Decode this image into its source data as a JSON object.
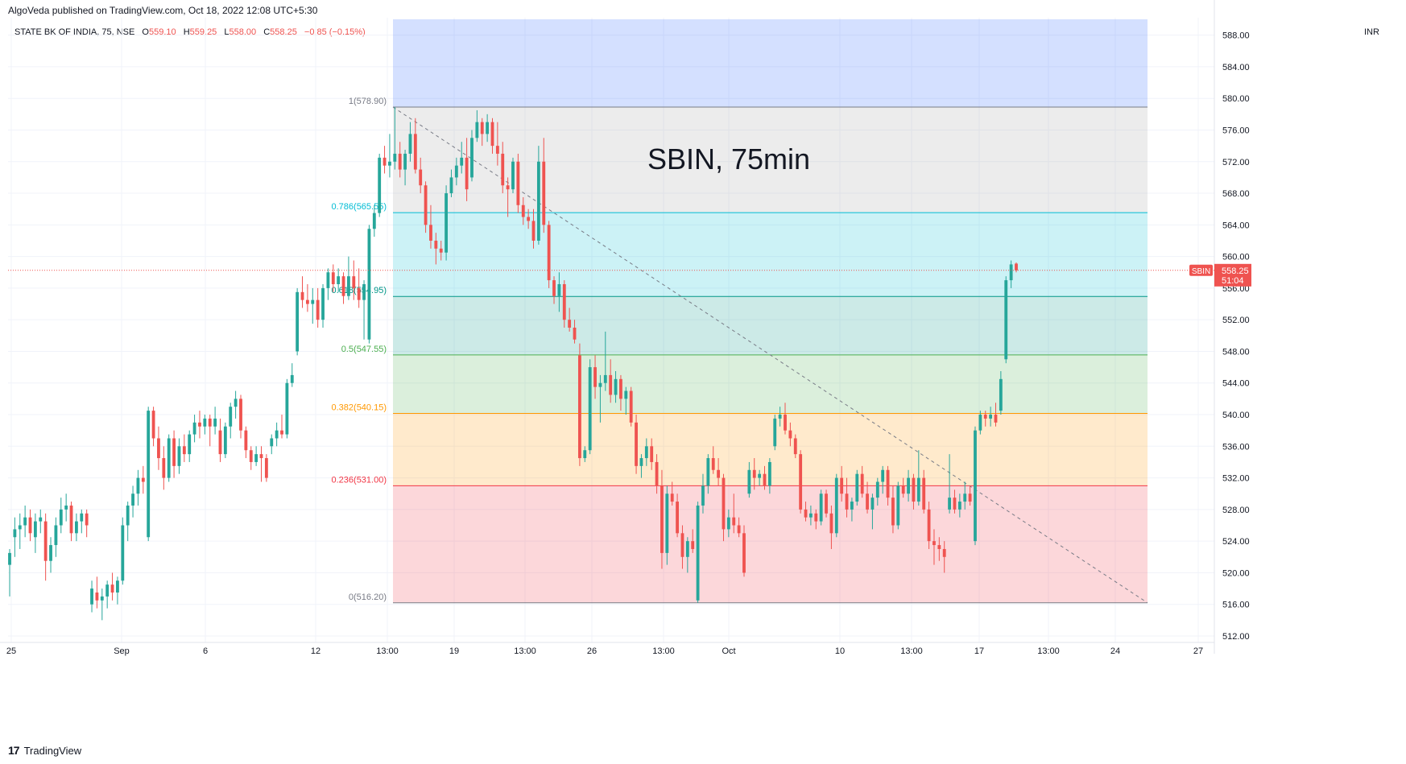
{
  "publisher_line": "AlgoVeda published on TradingView.com, Oct 18, 2022 12:08 UTC+5:30",
  "footer_brand": "TradingView",
  "legend": {
    "symbol": "STATE BK OF INDIA, 75, NSE",
    "o_label": "O",
    "o": "559.10",
    "h_label": "H",
    "h": "559.25",
    "l_label": "L",
    "l": "558.00",
    "c_label": "C",
    "c": "558.25",
    "change": "−0.85 (−0.15%)"
  },
  "currency": "INR",
  "colors": {
    "up": "#26a69a",
    "down": "#ef5350",
    "fib_top": "#2962ff",
    "fib_1_0786": "#9e9e9e",
    "fib_0786_0618": "#00bcd4",
    "fib_0618_05": "#009688",
    "fib_05_0382": "#4caf50",
    "fib_0382_0236": "#ff9800",
    "fib_0236_0": "#f23645",
    "last_price_bg": "#ef5350",
    "symbol_tag_bg": "#ef5350"
  },
  "chart_data": {
    "type": "candlestick",
    "title": "SBIN, 75min",
    "ylim": [
      512,
      590
    ],
    "y_ticks": [
      "588.00",
      "584.00",
      "580.00",
      "576.00",
      "572.00",
      "568.00",
      "564.00",
      "560.00",
      "556.00",
      "552.00",
      "548.00",
      "544.00",
      "540.00",
      "536.00",
      "532.00",
      "528.00",
      "524.00",
      "520.00",
      "516.00",
      "512.00"
    ],
    "x_ticks": [
      "25",
      "Sep",
      "6",
      "12",
      "13:00",
      "19",
      "13:00",
      "26",
      "13:00",
      "Oct",
      "10",
      "13:00",
      "17",
      "13:00",
      "24",
      "27"
    ],
    "last_price": "558.25",
    "last_price_timer": "51:04",
    "symbol_tag": "SBIN",
    "fib_levels": [
      {
        "ratio": 1,
        "price": 578.9,
        "label": "1(578.90)"
      },
      {
        "ratio": 0.786,
        "price": 565.55,
        "label": "0.786(565.55)"
      },
      {
        "ratio": 0.618,
        "price": 554.95,
        "label": "0.618(554.95)"
      },
      {
        "ratio": 0.5,
        "price": 547.55,
        "label": "0.5(547.55)"
      },
      {
        "ratio": 0.382,
        "price": 540.15,
        "label": "0.382(540.15)"
      },
      {
        "ratio": 0.236,
        "price": 531.0,
        "label": "0.236(531.00)"
      },
      {
        "ratio": 0,
        "price": 516.2,
        "label": "0(516.20)"
      }
    ],
    "fib_extension_top": 590,
    "trendline": {
      "from_price": 578.9,
      "to_price": 516.2
    },
    "candles": [
      [
        521.0,
        523.0,
        517.0,
        522.5
      ],
      [
        524.5,
        527.0,
        522.0,
        525.5
      ],
      [
        525.5,
        527.5,
        523.0,
        526.0
      ],
      [
        526.0,
        528.5,
        524.5,
        527.0
      ],
      [
        527.0,
        528.0,
        524.0,
        525.0
      ],
      [
        524.5,
        527.5,
        522.5,
        526.5
      ],
      [
        526.5,
        528.0,
        525.0,
        527.0
      ],
      [
        526.5,
        527.5,
        519.0,
        521.5
      ],
      [
        521.5,
        524.5,
        520.0,
        523.5
      ],
      [
        523.5,
        527.0,
        522.0,
        526.0
      ],
      [
        526.0,
        529.5,
        525.0,
        528.0
      ],
      [
        528.0,
        530.0,
        526.5,
        528.5
      ],
      [
        528.5,
        529.0,
        524.0,
        525.0
      ],
      [
        525.0,
        527.5,
        524.0,
        526.5
      ],
      [
        526.5,
        528.0,
        525.0,
        527.5
      ],
      [
        527.5,
        528.0,
        524.5,
        526.0
      ],
      [
        516.0,
        519.0,
        515.0,
        518.0
      ],
      [
        517.5,
        519.5,
        515.5,
        516.5
      ],
      [
        516.5,
        518.0,
        514.0,
        517.0
      ],
      [
        517.0,
        519.0,
        515.5,
        518.5
      ],
      [
        518.5,
        520.0,
        516.5,
        517.5
      ],
      [
        517.5,
        519.5,
        516.0,
        519.0
      ],
      [
        519.0,
        527.0,
        518.5,
        526.0
      ],
      [
        526.0,
        529.0,
        524.0,
        528.5
      ],
      [
        528.5,
        531.0,
        527.0,
        530.0
      ],
      [
        530.0,
        533.0,
        528.5,
        532.0
      ],
      [
        532.0,
        533.5,
        530.0,
        531.5
      ],
      [
        524.5,
        541.0,
        524.0,
        540.5
      ],
      [
        540.5,
        541.0,
        536.0,
        537.0
      ],
      [
        537.0,
        538.5,
        533.0,
        534.5
      ],
      [
        534.5,
        536.0,
        530.5,
        532.0
      ],
      [
        532.0,
        537.5,
        531.5,
        537.0
      ],
      [
        537.0,
        538.0,
        532.0,
        533.5
      ],
      [
        533.5,
        537.0,
        532.5,
        536.0
      ],
      [
        536.0,
        537.5,
        534.0,
        535.0
      ],
      [
        535.0,
        538.0,
        534.0,
        537.5
      ],
      [
        537.5,
        540.0,
        536.5,
        539.0
      ],
      [
        539.0,
        540.5,
        537.0,
        538.5
      ],
      [
        538.5,
        540.0,
        537.5,
        539.5
      ],
      [
        539.5,
        540.0,
        536.0,
        538.5
      ],
      [
        538.5,
        541.0,
        537.5,
        539.5
      ],
      [
        538.0,
        539.5,
        534.0,
        535.0
      ],
      [
        535.0,
        539.0,
        534.5,
        538.5
      ],
      [
        538.5,
        541.5,
        537.0,
        541.0
      ],
      [
        541.0,
        543.0,
        539.5,
        542.0
      ],
      [
        542.0,
        542.5,
        537.0,
        538.0
      ],
      [
        538.0,
        538.5,
        534.5,
        535.5
      ],
      [
        535.5,
        536.0,
        533.0,
        534.0
      ],
      [
        534.0,
        536.0,
        533.5,
        535.0
      ],
      [
        535.0,
        536.0,
        531.5,
        534.5
      ],
      [
        534.5,
        535.0,
        531.5,
        532.0
      ],
      [
        536.0,
        537.5,
        535.0,
        537.0
      ],
      [
        537.0,
        539.0,
        536.0,
        538.0
      ],
      [
        538.0,
        540.0,
        537.0,
        537.5
      ],
      [
        537.5,
        544.5,
        537.0,
        544.0
      ],
      [
        544.0,
        546.5,
        543.5,
        545.0
      ],
      [
        548.0,
        556.0,
        547.5,
        555.5
      ],
      [
        555.5,
        557.5,
        553.5,
        554.5
      ],
      [
        554.5,
        556.5,
        553.0,
        554.0
      ],
      [
        554.0,
        556.0,
        551.5,
        554.5
      ],
      [
        554.5,
        556.0,
        551.0,
        552.0
      ],
      [
        552.0,
        556.5,
        551.0,
        556.0
      ],
      [
        556.0,
        558.5,
        554.5,
        558.0
      ],
      [
        558.0,
        559.0,
        555.5,
        556.5
      ],
      [
        556.5,
        558.5,
        555.5,
        557.5
      ],
      [
        557.5,
        558.0,
        554.0,
        555.0
      ],
      [
        555.0,
        560.0,
        554.5,
        557.5
      ],
      [
        557.5,
        559.5,
        554.5,
        556.0
      ],
      [
        556.0,
        558.5,
        553.5,
        554.5
      ],
      [
        554.5,
        557.0,
        549.5,
        556.5
      ],
      [
        549.5,
        564.0,
        549.0,
        563.5
      ],
      [
        563.5,
        566.5,
        562.5,
        565.5
      ],
      [
        565.5,
        573.0,
        565.0,
        572.5
      ],
      [
        572.5,
        574.0,
        570.5,
        571.5
      ],
      [
        571.5,
        575.5,
        570.0,
        572.0
      ],
      [
        572.0,
        578.9,
        571.0,
        573.0
      ],
      [
        573.0,
        574.5,
        570.0,
        571.0
      ],
      [
        571.0,
        573.5,
        569.0,
        573.0
      ],
      [
        573.0,
        577.0,
        572.0,
        575.5
      ],
      [
        575.5,
        577.5,
        570.5,
        571.0
      ],
      [
        571.0,
        572.5,
        568.0,
        569.0
      ],
      [
        569.0,
        569.5,
        563.0,
        564.0
      ],
      [
        564.0,
        566.5,
        561.0,
        562.0
      ],
      [
        562.0,
        563.0,
        559.0,
        561.0
      ],
      [
        561.0,
        562.0,
        559.5,
        560.5
      ],
      [
        560.5,
        569.0,
        559.5,
        568.0
      ],
      [
        568.0,
        571.0,
        567.5,
        570.0
      ],
      [
        570.0,
        572.5,
        569.0,
        571.5
      ],
      [
        571.5,
        574.5,
        570.5,
        572.5
      ],
      [
        572.5,
        575.0,
        567.0,
        568.5
      ],
      [
        570.0,
        576.0,
        569.5,
        575.0
      ],
      [
        575.0,
        578.5,
        574.5,
        577.0
      ],
      [
        577.0,
        577.5,
        574.0,
        575.5
      ],
      [
        575.5,
        578.0,
        574.5,
        577.0
      ],
      [
        577.0,
        577.5,
        573.0,
        574.0
      ],
      [
        574.0,
        577.0,
        571.5,
        573.0
      ],
      [
        573.0,
        574.5,
        568.0,
        569.0
      ],
      [
        569.0,
        570.0,
        565.0,
        568.5
      ],
      [
        568.5,
        572.5,
        568.0,
        572.0
      ],
      [
        572.0,
        573.0,
        565.5,
        566.5
      ],
      [
        566.5,
        567.5,
        564.0,
        565.0
      ],
      [
        565.0,
        566.0,
        563.5,
        564.5
      ],
      [
        564.5,
        566.0,
        561.0,
        562.0
      ],
      [
        562.0,
        574.0,
        561.5,
        572.0
      ],
      [
        572.0,
        575.0,
        563.0,
        564.0
      ],
      [
        564.0,
        564.5,
        556.0,
        557.0
      ],
      [
        557.0,
        557.5,
        554.0,
        555.0
      ],
      [
        555.0,
        558.0,
        553.0,
        556.5
      ],
      [
        556.5,
        557.0,
        551.0,
        552.0
      ],
      [
        552.0,
        553.5,
        550.5,
        551.0
      ],
      [
        551.0,
        552.0,
        549.0,
        549.5
      ],
      [
        547.5,
        549.0,
        533.5,
        534.5
      ],
      [
        534.5,
        536.0,
        534.0,
        535.5
      ],
      [
        535.5,
        547.0,
        535.0,
        546.0
      ],
      [
        546.0,
        547.5,
        542.0,
        543.5
      ],
      [
        543.5,
        545.0,
        539.0,
        544.0
      ],
      [
        544.0,
        550.5,
        543.0,
        545.0
      ],
      [
        545.0,
        547.0,
        541.5,
        542.5
      ],
      [
        542.5,
        545.5,
        541.5,
        544.5
      ],
      [
        544.5,
        545.0,
        540.5,
        542.0
      ],
      [
        542.0,
        543.5,
        540.0,
        543.0
      ],
      [
        543.0,
        543.5,
        538.5,
        539.0
      ],
      [
        539.0,
        540.0,
        532.5,
        533.5
      ],
      [
        533.5,
        535.0,
        532.0,
        534.5
      ],
      [
        534.5,
        537.0,
        533.5,
        536.0
      ],
      [
        536.0,
        537.0,
        533.0,
        534.0
      ],
      [
        534.0,
        535.0,
        530.0,
        531.0
      ],
      [
        531.0,
        533.0,
        520.5,
        522.5
      ],
      [
        522.5,
        531.0,
        521.0,
        530.0
      ],
      [
        530.0,
        531.5,
        528.5,
        529.0
      ],
      [
        529.0,
        530.0,
        524.5,
        525.0
      ],
      [
        525.0,
        526.0,
        520.5,
        522.0
      ],
      [
        522.0,
        524.5,
        520.0,
        524.0
      ],
      [
        524.0,
        525.5,
        522.5,
        523.0
      ],
      [
        516.5,
        529.0,
        516.2,
        528.5
      ],
      [
        528.5,
        532.5,
        527.5,
        531.0
      ],
      [
        531.0,
        535.0,
        530.0,
        534.5
      ],
      [
        534.5,
        536.0,
        532.5,
        533.0
      ],
      [
        533.0,
        534.5,
        531.0,
        532.0
      ],
      [
        532.0,
        532.5,
        524.0,
        525.5
      ],
      [
        525.5,
        528.0,
        524.5,
        527.0
      ],
      [
        527.0,
        530.0,
        525.0,
        526.0
      ],
      [
        526.0,
        527.0,
        524.5,
        525.0
      ],
      [
        525.0,
        526.0,
        519.5,
        520.0
      ],
      [
        530.0,
        534.0,
        529.5,
        533.0
      ],
      [
        533.0,
        534.5,
        530.5,
        532.0
      ],
      [
        532.0,
        533.0,
        531.0,
        532.5
      ],
      [
        532.5,
        533.5,
        530.5,
        531.0
      ],
      [
        531.0,
        534.5,
        530.0,
        534.0
      ],
      [
        536.0,
        540.0,
        535.5,
        539.5
      ],
      [
        539.5,
        541.0,
        538.5,
        540.0
      ],
      [
        540.0,
        541.5,
        537.5,
        538.0
      ],
      [
        538.0,
        539.0,
        536.0,
        537.0
      ],
      [
        537.0,
        537.5,
        534.5,
        535.0
      ],
      [
        535.0,
        535.5,
        527.5,
        528.0
      ],
      [
        528.0,
        529.0,
        526.5,
        527.0
      ],
      [
        527.0,
        528.5,
        526.0,
        527.5
      ],
      [
        527.5,
        528.0,
        525.5,
        526.5
      ],
      [
        526.5,
        530.5,
        526.0,
        530.0
      ],
      [
        530.0,
        530.5,
        527.0,
        527.5
      ],
      [
        527.5,
        528.5,
        523.0,
        525.0
      ],
      [
        525.0,
        532.5,
        524.5,
        532.0
      ],
      [
        532.0,
        533.5,
        529.0,
        530.0
      ],
      [
        530.0,
        532.0,
        527.0,
        528.0
      ],
      [
        528.0,
        529.5,
        526.5,
        529.0
      ],
      [
        529.0,
        533.0,
        528.5,
        532.5
      ],
      [
        532.5,
        533.5,
        529.5,
        530.0
      ],
      [
        530.0,
        531.5,
        527.5,
        528.0
      ],
      [
        528.0,
        530.0,
        525.5,
        529.5
      ],
      [
        529.5,
        532.0,
        528.5,
        531.5
      ],
      [
        531.5,
        533.5,
        530.0,
        533.0
      ],
      [
        533.0,
        533.5,
        528.5,
        529.5
      ],
      [
        529.5,
        531.0,
        525.0,
        526.0
      ],
      [
        526.0,
        531.5,
        525.5,
        531.0
      ],
      [
        531.0,
        532.0,
        529.5,
        530.0
      ],
      [
        530.0,
        533.0,
        529.0,
        532.0
      ],
      [
        532.0,
        532.5,
        528.0,
        529.0
      ],
      [
        529.0,
        535.5,
        528.5,
        532.0
      ],
      [
        532.0,
        533.0,
        527.5,
        528.0
      ],
      [
        528.0,
        529.0,
        523.0,
        524.0
      ],
      [
        524.0,
        525.5,
        521.0,
        523.5
      ],
      [
        523.5,
        524.5,
        521.5,
        523.0
      ],
      [
        523.0,
        524.0,
        520.0,
        522.0
      ],
      [
        528.0,
        535.0,
        527.5,
        529.5
      ],
      [
        529.5,
        530.5,
        527.5,
        528.0
      ],
      [
        528.0,
        530.0,
        527.0,
        529.0
      ],
      [
        529.0,
        531.5,
        528.0,
        530.0
      ],
      [
        530.0,
        531.0,
        528.5,
        529.0
      ],
      [
        524.0,
        538.5,
        523.5,
        538.0
      ],
      [
        538.0,
        540.5,
        537.5,
        540.0
      ],
      [
        540.0,
        540.5,
        538.5,
        539.5
      ],
      [
        539.5,
        541.0,
        538.5,
        540.0
      ],
      [
        540.0,
        541.5,
        538.5,
        539.0
      ],
      [
        540.5,
        545.5,
        540.0,
        544.5
      ],
      [
        547.0,
        557.5,
        546.5,
        557.0
      ],
      [
        557.0,
        559.5,
        556.0,
        559.0
      ],
      [
        559.1,
        559.25,
        558.0,
        558.25
      ]
    ]
  }
}
